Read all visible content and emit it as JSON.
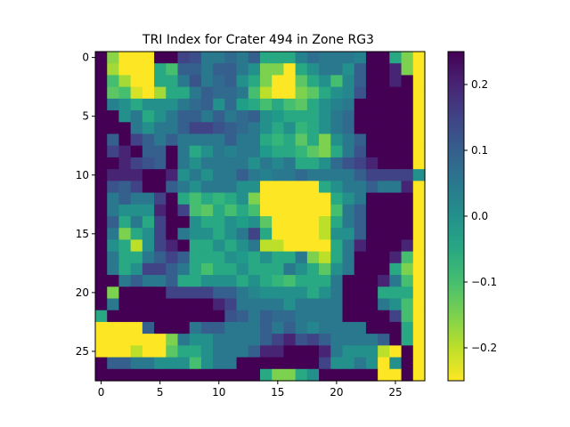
{
  "chart_data": {
    "type": "heatmap",
    "title": "TRI Index for Crater 494 in Zone RG3",
    "xlabel": "",
    "ylabel": "",
    "grid": false,
    "colormap": "viridis_r",
    "clim": [
      -0.25,
      0.25
    ],
    "x_ticks": [
      0,
      5,
      10,
      15,
      20,
      25
    ],
    "y_ticks": [
      0,
      5,
      10,
      15,
      20,
      25
    ],
    "colorbar_ticks": [
      0.2,
      0.1,
      0.0,
      -0.1,
      -0.2
    ],
    "colorbar_tick_labels": [
      "0.2",
      "0.1",
      "0.0",
      "−0.1",
      "−0.2"
    ],
    "rows": 28,
    "cols": 28,
    "values": [
      [
        0.25,
        -0.16,
        -0.25,
        -0.25,
        -0.25,
        0.25,
        0.25,
        0.15,
        0.13,
        0.05,
        0.05,
        0.08,
        0.05,
        0.1,
        -0.05,
        -0.05,
        -0.05,
        0.03,
        0.07,
        0.05,
        0.05,
        0.05,
        0.03,
        0.25,
        0.25,
        -0.05,
        -0.15,
        -0.25
      ],
      [
        0.25,
        -0.18,
        -0.25,
        -0.25,
        -0.25,
        -0.05,
        -0.1,
        0.1,
        0.1,
        0.05,
        0.1,
        0.1,
        0.05,
        0.0,
        -0.15,
        -0.15,
        -0.25,
        -0.05,
        0.0,
        0.05,
        0.05,
        0.0,
        0.1,
        0.25,
        0.25,
        0.2,
        -0.15,
        -0.25
      ],
      [
        0.25,
        -0.1,
        -0.18,
        -0.25,
        -0.25,
        -0.05,
        -0.05,
        0.05,
        0.12,
        0.05,
        0.08,
        0.1,
        0.0,
        -0.05,
        -0.15,
        -0.25,
        -0.25,
        -0.12,
        -0.05,
        0.0,
        -0.1,
        0.02,
        0.1,
        0.25,
        0.25,
        0.2,
        0.25,
        -0.25
      ],
      [
        0.25,
        -0.12,
        -0.1,
        -0.22,
        -0.25,
        -0.18,
        -0.05,
        -0.05,
        0.05,
        0.1,
        0.08,
        0.08,
        0.05,
        -0.1,
        -0.2,
        -0.25,
        -0.25,
        -0.15,
        -0.12,
        -0.05,
        0.0,
        0.02,
        0.12,
        0.25,
        0.25,
        0.25,
        0.25,
        -0.25
      ],
      [
        0.25,
        0.03,
        0.0,
        -0.05,
        0.0,
        0.0,
        0.0,
        0.05,
        0.08,
        0.1,
        0.0,
        0.08,
        -0.03,
        -0.05,
        -0.1,
        -0.05,
        -0.1,
        -0.12,
        -0.05,
        0.0,
        0.03,
        0.05,
        0.25,
        0.25,
        0.25,
        0.25,
        0.25,
        -0.25
      ],
      [
        0.25,
        0.25,
        0.0,
        0.05,
        -0.05,
        0.0,
        0.05,
        0.1,
        0.1,
        0.05,
        0.1,
        0.05,
        0.08,
        0.1,
        0.0,
        -0.02,
        -0.05,
        -0.05,
        -0.05,
        0.0,
        0.05,
        0.08,
        0.25,
        0.25,
        0.25,
        0.25,
        0.25,
        -0.25
      ],
      [
        0.25,
        0.25,
        0.25,
        0.05,
        0.0,
        0.05,
        0.05,
        0.1,
        0.15,
        0.15,
        0.12,
        0.1,
        0.08,
        0.05,
        0.0,
        -0.05,
        0.0,
        -0.08,
        -0.05,
        0.0,
        0.05,
        0.08,
        0.25,
        0.25,
        0.25,
        0.25,
        0.25,
        -0.25
      ],
      [
        0.25,
        0.1,
        0.25,
        0.15,
        0.1,
        0.05,
        0.1,
        0.05,
        0.05,
        0.05,
        0.05,
        0.1,
        0.05,
        0.05,
        -0.05,
        -0.08,
        -0.05,
        -0.12,
        -0.05,
        -0.15,
        0.0,
        0.05,
        0.1,
        0.25,
        0.25,
        0.25,
        0.25,
        -0.25
      ],
      [
        0.25,
        0.15,
        0.2,
        0.25,
        0.1,
        0.1,
        0.25,
        0.05,
        -0.05,
        0.0,
        0.05,
        0.03,
        0.05,
        0.05,
        -0.02,
        -0.05,
        -0.05,
        -0.08,
        -0.12,
        -0.15,
        -0.05,
        0.05,
        0.12,
        0.25,
        0.25,
        0.25,
        0.25,
        -0.25
      ],
      [
        0.25,
        0.25,
        0.2,
        0.15,
        0.12,
        0.1,
        0.25,
        0.05,
        0.0,
        0.05,
        0.05,
        0.05,
        0.05,
        0.0,
        0.05,
        0.02,
        0.05,
        -0.05,
        -0.05,
        0.0,
        0.08,
        0.12,
        0.15,
        0.2,
        0.25,
        0.25,
        0.25,
        -0.25
      ],
      [
        0.25,
        0.2,
        0.2,
        0.2,
        0.25,
        0.25,
        0.2,
        0.0,
        0.05,
        0.0,
        0.05,
        0.05,
        0.1,
        0.05,
        0.03,
        0.05,
        0.05,
        0.08,
        0.05,
        0.05,
        0.05,
        0.05,
        0.1,
        0.15,
        0.15,
        0.15,
        0.15,
        0.0
      ],
      [
        0.25,
        0.12,
        0.1,
        0.15,
        0.25,
        0.25,
        0.1,
        0.05,
        0.0,
        0.05,
        0.05,
        0.05,
        0.0,
        0.0,
        -0.25,
        -0.25,
        -0.25,
        -0.25,
        -0.25,
        -0.05,
        0.0,
        0.05,
        0.05,
        0.1,
        0.05,
        0.05,
        0.2,
        -0.25
      ],
      [
        0.25,
        0.05,
        0.1,
        0.05,
        0.05,
        0.15,
        0.25,
        -0.05,
        -0.1,
        -0.05,
        -0.08,
        -0.05,
        0.0,
        -0.15,
        -0.25,
        -0.25,
        -0.25,
        -0.25,
        -0.25,
        -0.25,
        -0.05,
        0.0,
        0.05,
        0.25,
        0.25,
        0.25,
        0.25,
        -0.25
      ],
      [
        0.25,
        0.05,
        0.0,
        0.0,
        0.0,
        0.2,
        0.25,
        0.15,
        -0.1,
        -0.12,
        -0.05,
        -0.1,
        -0.05,
        -0.1,
        -0.25,
        -0.25,
        -0.25,
        -0.25,
        -0.25,
        -0.25,
        -0.1,
        0.05,
        0.1,
        0.25,
        0.25,
        0.25,
        0.25,
        -0.25
      ],
      [
        0.25,
        0.1,
        -0.05,
        0.05,
        -0.05,
        0.15,
        0.25,
        0.25,
        0.0,
        -0.05,
        -0.05,
        0.0,
        -0.03,
        0.0,
        -0.12,
        -0.25,
        -0.25,
        -0.25,
        -0.25,
        -0.2,
        -0.05,
        0.05,
        0.1,
        0.25,
        0.25,
        0.25,
        0.25,
        -0.25
      ],
      [
        0.25,
        0.05,
        -0.15,
        -0.05,
        0.0,
        0.15,
        0.25,
        0.05,
        0.0,
        0.0,
        -0.05,
        0.0,
        0.05,
        0.15,
        -0.05,
        -0.25,
        -0.25,
        -0.25,
        -0.25,
        -0.2,
        0.0,
        0.0,
        0.1,
        0.25,
        0.25,
        0.25,
        0.25,
        -0.25
      ],
      [
        0.25,
        0.0,
        -0.05,
        -0.2,
        0.0,
        0.15,
        0.2,
        0.25,
        -0.05,
        -0.05,
        0.0,
        -0.05,
        0.0,
        0.05,
        -0.2,
        -0.2,
        -0.25,
        -0.25,
        -0.25,
        -0.25,
        -0.05,
        0.05,
        0.2,
        0.25,
        0.25,
        0.25,
        0.2,
        -0.25
      ],
      [
        0.25,
        0.05,
        -0.05,
        -0.05,
        0.05,
        0.1,
        0.15,
        0.1,
        -0.05,
        -0.05,
        -0.05,
        0.0,
        -0.02,
        -0.05,
        0.0,
        -0.05,
        -0.05,
        0.05,
        -0.15,
        -0.2,
        -0.05,
        0.05,
        0.25,
        0.25,
        0.25,
        0.2,
        -0.1,
        -0.25
      ],
      [
        0.25,
        0.05,
        -0.05,
        0.0,
        0.15,
        0.15,
        0.1,
        0.05,
        -0.05,
        -0.1,
        -0.05,
        -0.05,
        0.0,
        -0.05,
        -0.05,
        -0.05,
        0.05,
        0.0,
        -0.05,
        -0.12,
        0.0,
        0.05,
        0.25,
        0.25,
        0.25,
        -0.05,
        -0.15,
        -0.25
      ],
      [
        0.25,
        0.25,
        0.05,
        0.1,
        0.05,
        0.05,
        0.1,
        -0.05,
        -0.05,
        0.0,
        0.0,
        0.0,
        -0.05,
        0.0,
        -0.05,
        -0.08,
        -0.1,
        -0.05,
        -0.05,
        -0.05,
        0.05,
        0.25,
        0.25,
        0.25,
        0.2,
        0.05,
        -0.1,
        -0.25
      ],
      [
        0.25,
        -0.15,
        0.25,
        0.25,
        0.25,
        0.25,
        0.15,
        0.15,
        0.15,
        0.15,
        0.1,
        0.1,
        0.05,
        0.02,
        0.0,
        0.0,
        0.0,
        0.0,
        -0.05,
        0.0,
        0.05,
        0.25,
        0.25,
        0.25,
        -0.05,
        -0.05,
        -0.05,
        -0.25
      ],
      [
        0.25,
        0.05,
        0.25,
        0.25,
        0.25,
        0.25,
        0.25,
        0.25,
        0.25,
        0.25,
        0.2,
        0.15,
        0.05,
        0.05,
        0.05,
        0.05,
        0.0,
        0.05,
        0.05,
        0.05,
        0.05,
        0.25,
        0.25,
        0.25,
        0.05,
        0.0,
        -0.1,
        -0.25
      ],
      [
        -0.05,
        0.25,
        0.25,
        0.25,
        0.25,
        0.25,
        0.25,
        0.25,
        0.25,
        0.25,
        0.25,
        0.12,
        0.1,
        0.05,
        0.1,
        0.08,
        0.08,
        0.05,
        0.05,
        0.05,
        0.05,
        0.25,
        0.25,
        0.25,
        0.25,
        0.15,
        -0.1,
        -0.25
      ],
      [
        -0.25,
        -0.25,
        -0.25,
        -0.25,
        0.1,
        0.25,
        0.25,
        0.25,
        0.05,
        0.1,
        0.1,
        0.05,
        0.05,
        0.05,
        0.1,
        0.05,
        0.1,
        0.05,
        0.02,
        0.05,
        0.05,
        0.05,
        0.05,
        0.25,
        0.25,
        0.25,
        -0.05,
        -0.25
      ],
      [
        -0.25,
        -0.25,
        -0.25,
        -0.25,
        -0.25,
        -0.25,
        -0.15,
        0.05,
        0.0,
        0.0,
        0.05,
        0.05,
        0.05,
        0.05,
        0.1,
        0.15,
        0.2,
        0.12,
        0.15,
        0.1,
        0.05,
        0.05,
        0.05,
        0.05,
        0.1,
        0.25,
        -0.05,
        -0.25
      ],
      [
        -0.25,
        -0.25,
        -0.25,
        -0.2,
        -0.25,
        -0.25,
        -0.12,
        -0.05,
        -0.05,
        0.0,
        0.05,
        0.05,
        0.05,
        0.1,
        0.2,
        0.2,
        0.25,
        0.25,
        0.25,
        0.2,
        0.05,
        0.0,
        0.0,
        0.0,
        -0.2,
        -0.25,
        0.25,
        -0.25
      ],
      [
        0.25,
        0.1,
        0.1,
        0.05,
        0.05,
        0.0,
        0.0,
        0.0,
        -0.1,
        0.0,
        0.05,
        0.05,
        0.25,
        0.25,
        0.25,
        0.25,
        0.25,
        0.25,
        0.25,
        0.15,
        0.0,
        0.0,
        0.05,
        0.0,
        -0.25,
        0.0,
        0.25,
        -0.25
      ],
      [
        0.25,
        0.25,
        0.25,
        0.25,
        0.25,
        0.25,
        0.25,
        0.25,
        0.25,
        0.25,
        0.25,
        0.25,
        0.25,
        0.25,
        -0.05,
        -0.15,
        -0.15,
        -0.05,
        0.0,
        0.25,
        0.25,
        0.25,
        0.25,
        0.25,
        -0.25,
        -0.25,
        0.25,
        -0.25
      ]
    ]
  }
}
